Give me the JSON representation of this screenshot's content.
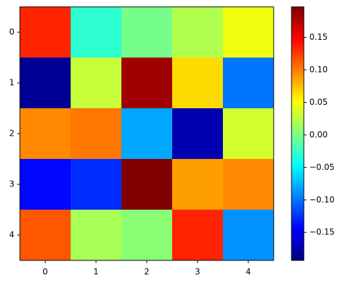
{
  "chart_data": {
    "type": "heatmap",
    "colormap": "jet",
    "x_categories": [
      "0",
      "1",
      "2",
      "3",
      "4"
    ],
    "y_categories": [
      "0",
      "1",
      "2",
      "3",
      "4"
    ],
    "values": [
      [
        0.135,
        -0.029,
        -0.002,
        0.021,
        0.045
      ],
      [
        -0.185,
        0.029,
        0.185,
        0.064,
        -0.099
      ],
      [
        0.096,
        0.103,
        -0.08,
        -0.174,
        0.033
      ],
      [
        -0.142,
        -0.127,
        0.197,
        0.088,
        0.096
      ],
      [
        0.115,
        0.018,
        0.006,
        0.135,
        -0.088
      ]
    ],
    "clim": [
      -0.193,
      0.197
    ],
    "cticks": [
      {
        "value": -0.15,
        "label": "−0.15"
      },
      {
        "value": -0.1,
        "label": "−0.10"
      },
      {
        "value": -0.05,
        "label": "−0.05"
      },
      {
        "value": 0,
        "label": "0.00"
      },
      0.05,
      {
        "value": 0.1,
        "label": "0.10"
      },
      0.15
    ]
  }
}
